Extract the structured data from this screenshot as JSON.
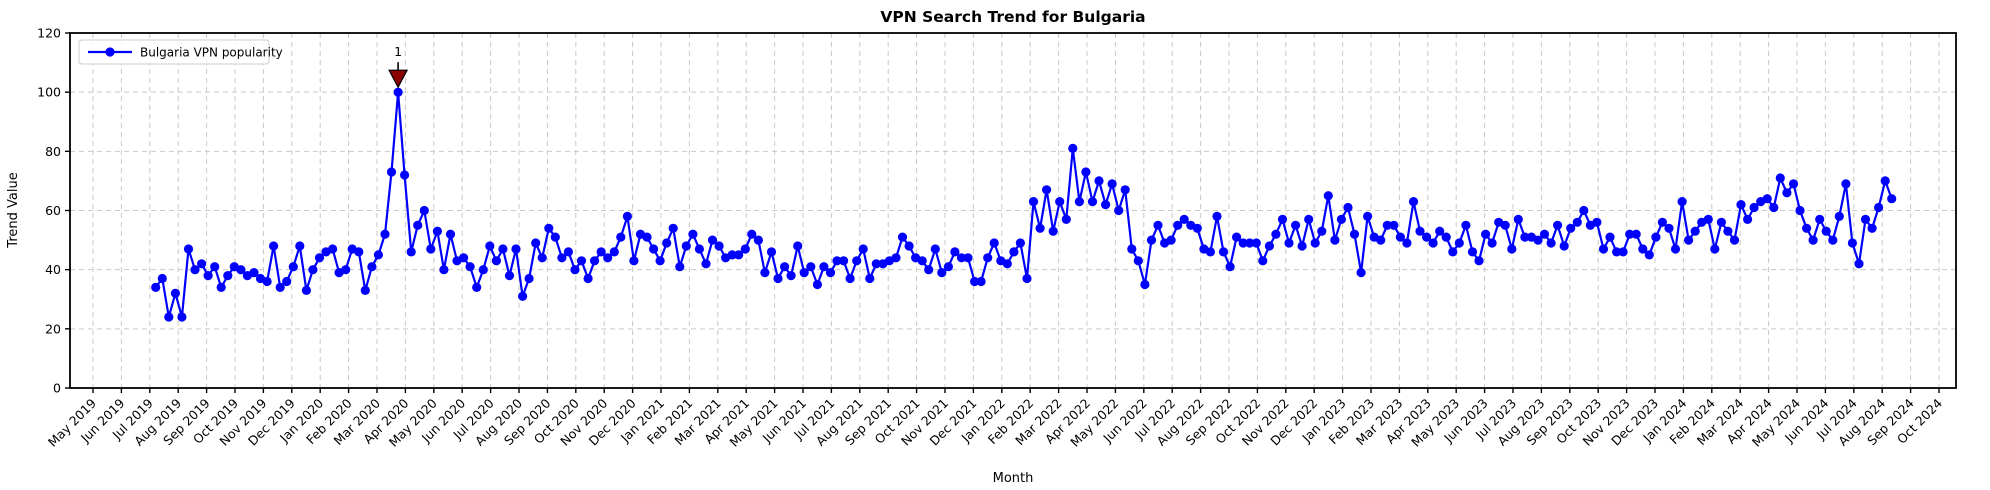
{
  "figure": {
    "title": "VPN Search Trend for Bulgaria",
    "xlabel": "Month",
    "ylabel": "Trend Value",
    "legend_label": "Bulgaria VPN popularity"
  },
  "colors": {
    "line": "#0000ff",
    "marker": "#0000ff",
    "grid": "#c9c9c9",
    "spine": "#000000",
    "annotation": "#8b0000",
    "background": "#ffffff",
    "legend_border": "#cccccc"
  },
  "chart_data": {
    "type": "line",
    "title": "VPN Search Trend for Bulgaria",
    "xlabel": "Month",
    "ylabel": "Trend Value",
    "legend": [
      "Bulgaria VPN popularity"
    ],
    "legend_position": "upper left",
    "grid": true,
    "grid_style": "dashed",
    "ylim": [
      0,
      120
    ],
    "yticks": [
      0,
      20,
      40,
      60,
      80,
      100,
      120
    ],
    "x_tick_labels": [
      "May 2019",
      "Jun 2019",
      "Jul 2019",
      "Aug 2019",
      "Sep 2019",
      "Oct 2019",
      "Nov 2019",
      "Dec 2019",
      "Jan 2020",
      "Feb 2020",
      "Mar 2020",
      "Apr 2020",
      "May 2020",
      "Jun 2020",
      "Jul 2020",
      "Aug 2020",
      "Sep 2020",
      "Oct 2020",
      "Nov 2020",
      "Dec 2020",
      "Jan 2021",
      "Feb 2021",
      "Mar 2021",
      "Apr 2021",
      "May 2021",
      "Jun 2021",
      "Jul 2021",
      "Aug 2021",
      "Sep 2021",
      "Oct 2021",
      "Nov 2021",
      "Dec 2021",
      "Jan 2022",
      "Feb 2022",
      "Mar 2022",
      "Apr 2022",
      "May 2022",
      "Jun 2022",
      "Jul 2022",
      "Aug 2022",
      "Sep 2022",
      "Oct 2022",
      "Nov 2022",
      "Dec 2022",
      "Jan 2023",
      "Feb 2023",
      "Mar 2023",
      "Apr 2023",
      "May 2023",
      "Jun 2023",
      "Jul 2023",
      "Aug 2023",
      "Sep 2023",
      "Oct 2023",
      "Nov 2023",
      "Dec 2023",
      "Jan 2024",
      "Feb 2024",
      "Mar 2024",
      "Apr 2024",
      "May 2024",
      "Jun 2024",
      "Jul 2024",
      "Aug 2024",
      "Sep 2024",
      "Oct 2024"
    ],
    "series": [
      {
        "name": "Bulgaria VPN popularity",
        "start_date": "2019-07-07",
        "cadence": "weekly",
        "values": [
          34,
          37,
          24,
          32,
          24,
          47,
          40,
          42,
          38,
          41,
          34,
          38,
          41,
          40,
          38,
          39,
          37,
          36,
          48,
          34,
          36,
          41,
          48,
          33,
          40,
          44,
          46,
          47,
          39,
          40,
          47,
          46,
          33,
          41,
          45,
          52,
          73,
          100,
          72,
          46,
          55,
          60,
          47,
          53,
          40,
          52,
          43,
          44,
          41,
          34,
          40,
          48,
          43,
          47,
          38,
          47,
          31,
          37,
          49,
          44,
          54,
          51,
          44,
          46,
          40,
          43,
          37,
          43,
          46,
          44,
          46,
          51,
          58,
          43,
          52,
          51,
          47,
          43,
          49,
          54,
          41,
          48,
          52,
          47,
          42,
          50,
          48,
          44,
          45,
          45,
          47,
          52,
          50,
          39,
          46,
          37,
          41,
          38,
          48,
          39,
          41,
          35,
          41,
          39,
          43,
          43,
          37,
          43,
          47,
          37,
          42,
          42,
          43,
          44,
          51,
          48,
          44,
          43,
          40,
          47,
          39,
          41,
          46,
          44,
          44,
          36,
          36,
          44,
          49,
          43,
          42,
          46,
          49,
          37,
          63,
          54,
          67,
          53,
          63,
          57,
          81,
          63,
          73,
          63,
          70,
          62,
          69,
          60,
          67,
          47,
          43,
          35,
          50,
          55,
          49,
          50,
          55,
          57,
          55,
          54,
          47,
          46,
          58,
          46,
          41,
          51,
          49,
          49,
          49,
          43,
          48,
          52,
          57,
          49,
          55,
          48,
          57,
          49,
          53,
          65,
          50,
          57,
          61,
          52,
          39,
          58,
          51,
          50,
          55,
          55,
          51,
          49,
          63,
          53,
          51,
          49,
          53,
          51,
          46,
          49,
          55,
          46,
          43,
          52,
          49,
          56,
          55,
          47,
          57,
          51,
          51,
          50,
          52,
          49,
          55,
          48,
          54,
          56,
          60,
          55,
          56,
          47,
          51,
          46,
          46,
          52,
          52,
          47,
          45,
          51,
          56,
          54,
          47,
          63,
          50,
          53,
          56,
          57,
          47,
          56,
          53,
          50,
          62,
          57,
          61,
          63,
          64,
          61,
          71,
          66,
          69,
          60,
          54,
          50,
          57,
          53,
          50,
          58,
          69,
          49,
          42,
          57,
          54,
          61,
          70,
          64
        ]
      }
    ],
    "annotations": [
      {
        "label": "1",
        "series_index": 37,
        "value": 100,
        "marker": "triangle-down",
        "color": "#8b0000"
      }
    ]
  }
}
